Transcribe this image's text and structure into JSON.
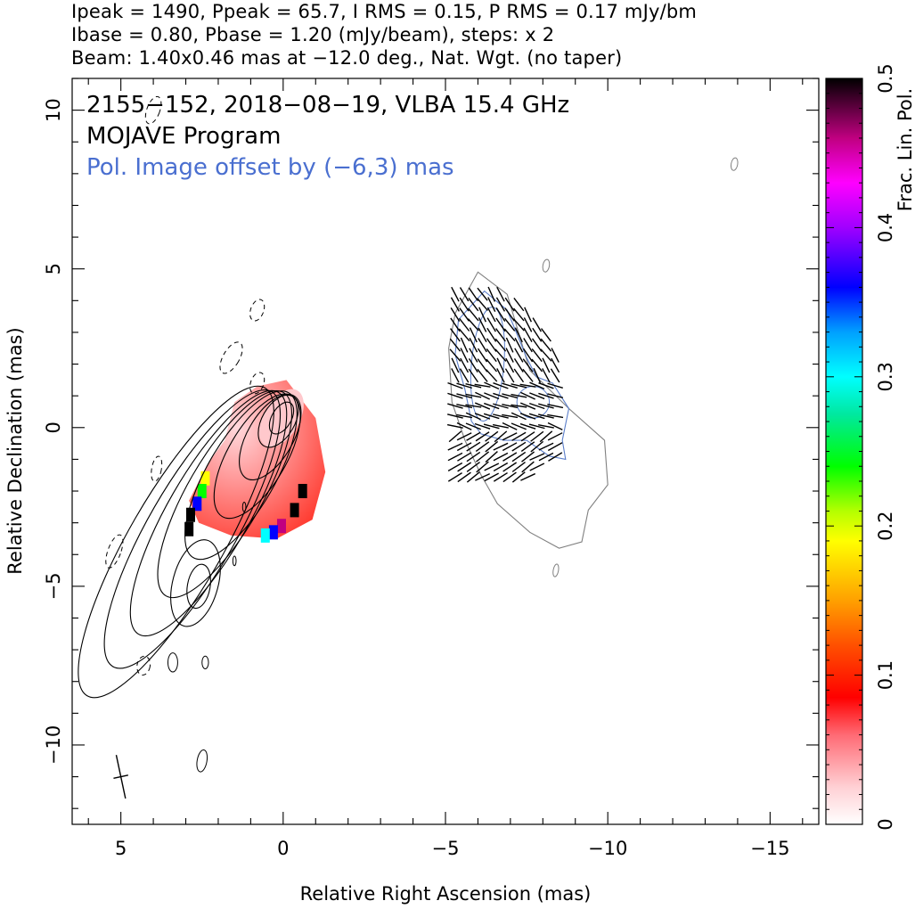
{
  "header": {
    "line1": "Ipeak = 1490, Ppeak = 65.7, I RMS = 0.15, P RMS = 0.17 mJy/bm",
    "line2": "Ibase = 0.80, Pbase = 1.20 (mJy/beam), steps: x 2",
    "line3": "Beam: 1.40x0.46 mas at −12.0 deg., Nat. Wgt. (no taper)"
  },
  "chart_data": {
    "type": "contour-map",
    "xlabel": "Relative Right Ascension (mas)",
    "ylabel": "Relative Declination (mas)",
    "xlim": [
      6.5,
      -16.5
    ],
    "ylim": [
      -12.5,
      11
    ],
    "x_ticks": [
      5,
      0,
      -5,
      -10,
      -15
    ],
    "y_ticks": [
      -10,
      -5,
      0,
      5,
      10
    ],
    "x_tick_labels": [
      "5",
      "0",
      "−5",
      "−10",
      "−15"
    ],
    "y_tick_labels": [
      "−10",
      "−5",
      "0",
      "5",
      "10"
    ],
    "annotations": {
      "source": "2155−152, 2018−08−19, VLBA 15.4 GHz",
      "program": "MOJAVE Program",
      "offset": "Pol. Image offset by (−6,3) mas",
      "offset_color": "#4a6fd0"
    },
    "colorbar": {
      "label": "Frac. Lin. Pol.",
      "range": [
        0,
        0.5
      ],
      "ticks": [
        0,
        0.1,
        0.2,
        0.3,
        0.4,
        0.5
      ],
      "tick_labels": [
        "0",
        "0.1",
        "0.2",
        "0.3",
        "0.4",
        "0.5"
      ]
    },
    "stokes_i": {
      "peak_mjy_per_beam": 1490,
      "peak_position_mas": [
        0.1,
        0.3
      ],
      "base_contour_mjy_per_beam": 0.8,
      "contour_step_factor": 2
    },
    "polarization": {
      "peak_mjy_per_beam": 65.7,
      "base_contour_mjy_per_beam": 1.2,
      "offset_mas": [
        -6,
        3
      ]
    },
    "beam": {
      "major_mas": 1.4,
      "minor_mas": 0.46,
      "pa_deg": -12.0,
      "position_mas": [
        5,
        -11
      ]
    },
    "colors": {
      "contour": "#000000",
      "pol_contour": "#5b7ec9",
      "pol_outer": "#808080",
      "evpa": "#000000"
    }
  }
}
